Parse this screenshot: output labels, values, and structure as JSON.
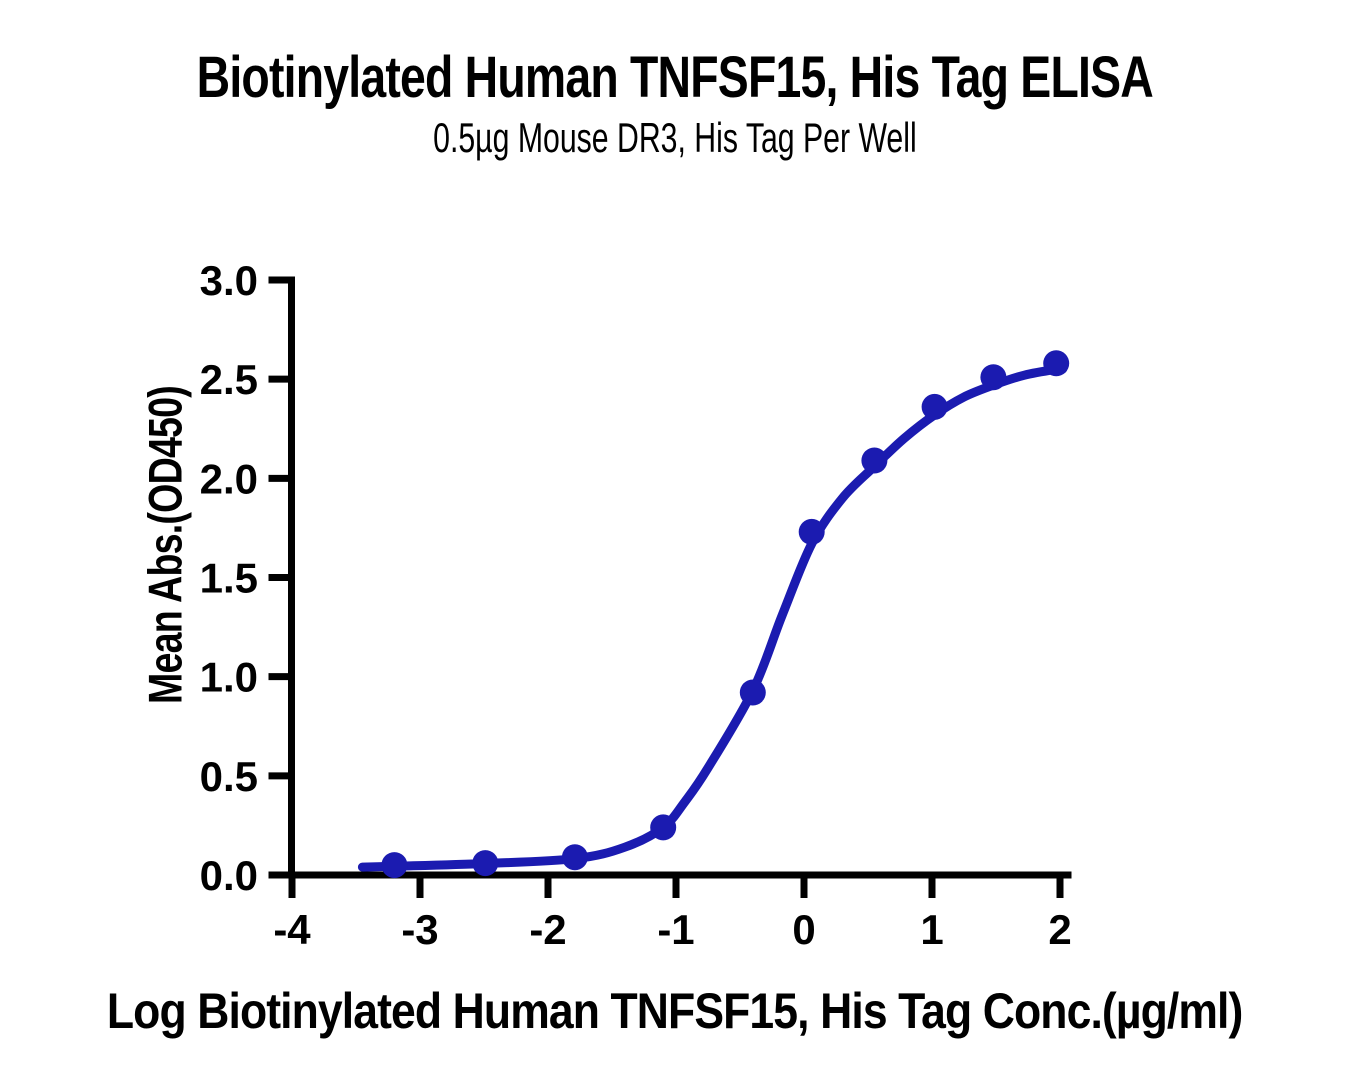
{
  "page": {
    "background_color": "#ffffff",
    "text_color": "#000000"
  },
  "chart_data": {
    "type": "scatter",
    "title": "Biotinylated Human TNFSF15, His Tag ELISA",
    "subtitle": "0.5µg Mouse DR3, His Tag Per Well",
    "xlabel": "Log Biotinylated Human TNFSF15, His Tag Conc.(µg/ml)",
    "ylabel": "Mean Abs.(OD450)",
    "xlim": [
      -4,
      2
    ],
    "ylim": [
      0.0,
      3.0
    ],
    "x_tick_labels": [
      "-4",
      "-3",
      "-2",
      "-1",
      "0",
      "1",
      "2"
    ],
    "x_tick_values": [
      -4,
      -3,
      -2,
      -1,
      0,
      1,
      2
    ],
    "y_tick_labels": [
      "0.0",
      "0.5",
      "1.0",
      "1.5",
      "2.0",
      "2.5",
      "3.0"
    ],
    "y_tick_values": [
      0,
      0.5,
      1,
      1.5,
      2,
      2.5,
      3
    ],
    "grid": false,
    "legend": "none",
    "axis_color": "#000000",
    "series": [
      {
        "name": "Mean Abs.(OD450) measured points",
        "type": "scatter",
        "marker": "circle",
        "color": "#1b1bb0",
        "x": [
          -3.2,
          -2.49,
          -1.79,
          -1.1,
          -0.4,
          0.06,
          0.55,
          1.02,
          1.48,
          1.97
        ],
        "y": [
          0.05,
          0.06,
          0.09,
          0.24,
          0.92,
          1.73,
          2.09,
          2.36,
          2.51,
          2.58
        ]
      },
      {
        "name": "4PL fit curve",
        "type": "line",
        "color": "#1b1bb0",
        "x": [
          -3.45,
          -3.2,
          -2.49,
          -1.79,
          -1.4,
          -1.1,
          -0.93,
          -0.75,
          -0.4,
          -0.17,
          0.06,
          0.3,
          0.55,
          0.78,
          1.02,
          1.25,
          1.48,
          1.72,
          1.97,
          2.02
        ],
        "y": [
          0.04,
          0.044,
          0.058,
          0.082,
          0.14,
          0.24,
          0.37,
          0.54,
          0.93,
          1.31,
          1.67,
          1.9,
          2.06,
          2.2,
          2.32,
          2.41,
          2.47,
          2.52,
          2.55,
          2.551
        ]
      }
    ]
  }
}
